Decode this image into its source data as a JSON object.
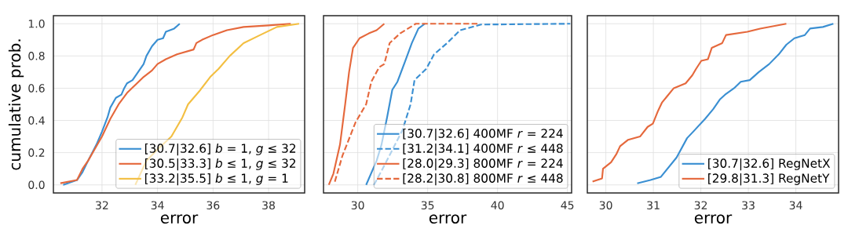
{
  "chart_data": [
    {
      "type": "line",
      "xlabel": "error",
      "ylabel": "cumulative prob.",
      "xlim": [
        30.25,
        39.3
      ],
      "ylim": [
        -0.05,
        1.05
      ],
      "xticks": [
        32,
        34,
        36,
        38
      ],
      "yticks": [
        {
          "value": 0,
          "label": "0.0"
        },
        {
          "value": 0.2,
          "label": "0.2"
        },
        {
          "value": 0.4,
          "label": "0.4"
        },
        {
          "value": 0.6,
          "label": "0.6"
        },
        {
          "value": 0.8,
          "label": "0.8"
        },
        {
          "value": 1,
          "label": "1.0"
        }
      ],
      "grid": true,
      "legend": "bottom right",
      "marker": "none",
      "series": [
        {
          "name": "[30.7|32.6] *b* = 1, *g* ≤ 32",
          "color": "#3a8fd2",
          "line_style": "solid",
          "x": [
            30.6,
            31.1,
            31.3,
            31.5,
            31.8,
            32.0,
            32.2,
            32.3,
            32.5,
            32.7,
            32.8,
            32.9,
            33.1,
            33.3,
            33.5,
            33.6,
            33.8,
            34.0,
            34.2,
            34.3,
            34.6,
            34.8
          ],
          "values": [
            0,
            0.03,
            0.08,
            0.15,
            0.25,
            0.33,
            0.42,
            0.48,
            0.54,
            0.56,
            0.6,
            0.63,
            0.65,
            0.7,
            0.75,
            0.8,
            0.86,
            0.9,
            0.91,
            0.95,
            0.97,
            1.0
          ]
        },
        {
          "name": "[30.5|33.3] *b* ≤ 1, *g* ≤ 32",
          "color": "#e5683c",
          "line_style": "solid",
          "x": [
            30.5,
            31.1,
            31.3,
            31.5,
            31.7,
            32.0,
            32.3,
            32.6,
            32.9,
            33.2,
            33.5,
            33.8,
            34.0,
            34.3,
            34.7,
            35.3,
            35.4,
            35.6,
            36.0,
            36.5,
            37.1,
            38.0,
            38.8
          ],
          "values": [
            0.01,
            0.03,
            0.1,
            0.15,
            0.21,
            0.3,
            0.41,
            0.5,
            0.57,
            0.62,
            0.67,
            0.71,
            0.75,
            0.78,
            0.81,
            0.84,
            0.88,
            0.9,
            0.93,
            0.96,
            0.98,
            0.99,
            1.0
          ]
        },
        {
          "name": "[33.2|35.5] *b* ≤ 1, *g* = 1",
          "color": "#f3bf42",
          "line_style": "solid",
          "x": [
            33.2,
            33.6,
            34.0,
            34.5,
            34.9,
            35.1,
            35.5,
            35.9,
            36.2,
            36.6,
            37.1,
            37.7,
            38.3,
            39.1
          ],
          "values": [
            0,
            0.15,
            0.22,
            0.3,
            0.42,
            0.5,
            0.58,
            0.67,
            0.72,
            0.8,
            0.88,
            0.93,
            0.98,
            1.0
          ]
        }
      ]
    },
    {
      "type": "line",
      "xlabel": "error",
      "xlim": [
        27.55,
        45.3
      ],
      "ylim": [
        -0.05,
        1.05
      ],
      "xticks": [
        30,
        35,
        40,
        45
      ],
      "yticks": [
        {
          "value": 0,
          "label": null
        },
        {
          "value": 0.2,
          "label": null
        },
        {
          "value": 0.4,
          "label": null
        },
        {
          "value": 0.6,
          "label": null
        },
        {
          "value": 0.8,
          "label": null
        },
        {
          "value": 1,
          "label": null
        }
      ],
      "tick_labels": "x",
      "grid": true,
      "legend": "bottom right",
      "marker": "none",
      "series": [
        {
          "name": "[30.7|32.6] 400MF *r* = 224",
          "color": "#3a8fd2",
          "line_style": "solid",
          "x": [
            30.6,
            31.35,
            31.7,
            32.1,
            32.47,
            32.84,
            33.4,
            33.87,
            34.34,
            34.8
          ],
          "values": [
            0,
            0.15,
            0.25,
            0.42,
            0.59,
            0.64,
            0.77,
            0.88,
            0.97,
            1.0
          ]
        },
        {
          "name": "[31.2|34.1] 400MF *r* ≤ 448",
          "color": "#3a8fd2",
          "line_style": "dashed",
          "x": [
            31.16,
            31.9,
            33.2,
            33.78,
            34.06,
            34.9,
            35.46,
            36.39,
            37.33,
            38.82,
            45.2
          ],
          "values": [
            0,
            0.12,
            0.34,
            0.5,
            0.65,
            0.72,
            0.81,
            0.88,
            0.96,
            0.995,
            1.0
          ]
        },
        {
          "name": "[28.0|29.3] 800MF *r* = 224",
          "color": "#e5683c",
          "line_style": "solid",
          "x": [
            27.93,
            28.26,
            28.73,
            29.1,
            29.38,
            29.66,
            30.13,
            30.79,
            31.35,
            31.9
          ],
          "values": [
            0,
            0.07,
            0.25,
            0.5,
            0.7,
            0.85,
            0.91,
            0.94,
            0.96,
            1.0
          ]
        },
        {
          "name": "[28.2|30.8] 800MF *r* ≤ 448",
          "color": "#e5683c",
          "line_style": "dashed",
          "x": [
            28.36,
            28.9,
            29.85,
            30.6,
            30.97,
            31.53,
            31.9,
            32.28,
            33.03,
            34.15,
            38.6
          ],
          "values": [
            0.02,
            0.18,
            0.39,
            0.5,
            0.64,
            0.73,
            0.75,
            0.88,
            0.94,
            1.0,
            1.0
          ]
        }
      ]
    },
    {
      "type": "line",
      "xlabel": "error",
      "xlim": [
        29.61,
        34.9
      ],
      "ylim": [
        -0.05,
        1.05
      ],
      "xticks": [
        30,
        31,
        32,
        33,
        34
      ],
      "yticks": [
        {
          "value": 0,
          "label": null
        },
        {
          "value": 0.2,
          "label": null
        },
        {
          "value": 0.4,
          "label": null
        },
        {
          "value": 0.6,
          "label": null
        },
        {
          "value": 0.8,
          "label": null
        },
        {
          "value": 1,
          "label": null
        }
      ],
      "tick_labels": "x",
      "grid": true,
      "legend": "bottom right",
      "marker": "none",
      "series": [
        {
          "name": "[30.7|32.6] RegNetX",
          "color": "#3a8fd2",
          "line_style": "solid",
          "x": [
            30.66,
            30.94,
            31.16,
            31.49,
            31.71,
            31.87,
            32.09,
            32.26,
            32.4,
            32.51,
            32.7,
            32.84,
            33.03,
            33.22,
            33.44,
            33.64,
            33.8,
            33.97,
            34.19,
            34.3,
            34.57,
            34.79
          ],
          "values": [
            0.01,
            0.03,
            0.05,
            0.17,
            0.29,
            0.34,
            0.41,
            0.47,
            0.53,
            0.56,
            0.6,
            0.64,
            0.65,
            0.7,
            0.75,
            0.81,
            0.87,
            0.91,
            0.93,
            0.97,
            0.98,
            1.0
          ]
        },
        {
          "name": "[29.8|31.3] RegNetY",
          "color": "#e5683c",
          "line_style": "solid",
          "x": [
            29.72,
            29.92,
            29.94,
            30.11,
            30.22,
            30.3,
            30.47,
            30.72,
            30.88,
            30.99,
            31.1,
            31.18,
            31.29,
            31.43,
            31.68,
            31.82,
            31.9,
            32.01,
            32.15,
            32.23,
            32.45,
            32.53,
            32.98,
            33.25,
            33.8
          ],
          "values": [
            0.02,
            0.04,
            0.1,
            0.14,
            0.19,
            0.24,
            0.28,
            0.3,
            0.36,
            0.38,
            0.46,
            0.51,
            0.55,
            0.6,
            0.63,
            0.68,
            0.72,
            0.77,
            0.78,
            0.85,
            0.88,
            0.93,
            0.95,
            0.97,
            1.0
          ]
        }
      ]
    }
  ]
}
